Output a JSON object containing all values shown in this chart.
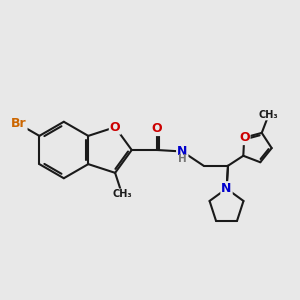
{
  "bg_color": "#e8e8e8",
  "bond_color": "#1a1a1a",
  "bond_width": 1.5,
  "atom_colors": {
    "Br": "#cc6600",
    "O": "#cc0000",
    "N": "#0000cc",
    "H": "#777777",
    "C": "#1a1a1a"
  },
  "font_size_atom": 9,
  "font_size_small": 7.5
}
